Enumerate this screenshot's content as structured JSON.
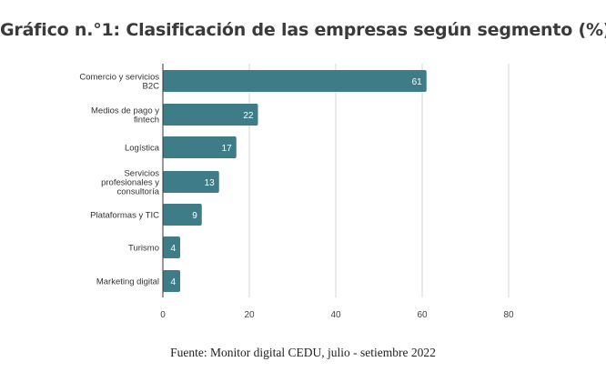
{
  "title": "Gráfico n.°1: Clasificación de las empresas según segmento (%)",
  "source": "Fuente: Monitor digital CEDU, julio - setiembre 2022",
  "chart_data": {
    "type": "bar",
    "orientation": "horizontal",
    "categories": [
      [
        "Comercio y servicios",
        "B2C"
      ],
      [
        "Medios de pago y",
        "fintech"
      ],
      [
        "Logística"
      ],
      [
        "Servicios",
        "profesionales y",
        "consultoría"
      ],
      [
        "Plataformas y TIC"
      ],
      [
        "Turismo"
      ],
      [
        "Marketing digital"
      ]
    ],
    "values": [
      61,
      22,
      17,
      13,
      9,
      4,
      4
    ],
    "xlim": [
      0,
      80
    ],
    "xticks": [
      0,
      20,
      40,
      60,
      80
    ],
    "grid": true,
    "data_labels": true,
    "bar_color": "#3e7c87"
  }
}
